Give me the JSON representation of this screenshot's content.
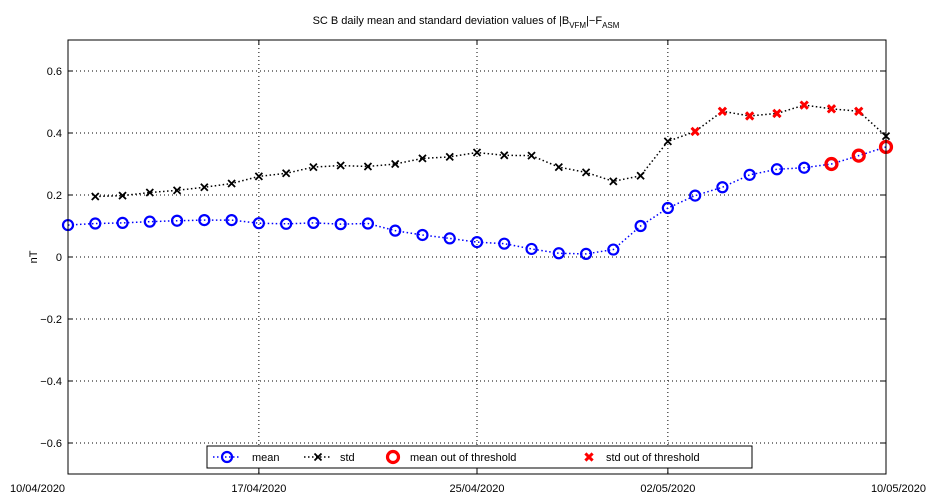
{
  "chart_data": {
    "type": "line",
    "title_parts": [
      "SC B daily mean and standard deviation values of |B",
      "VFM",
      "|−F",
      "ASM"
    ],
    "ylabel": "nT",
    "xlabel": "",
    "ylim": [
      -0.7,
      0.7
    ],
    "yticks": [
      -0.6,
      -0.4,
      -0.2,
      0,
      0.2,
      0.4,
      0.6
    ],
    "ytick_labels": [
      "−0.6",
      "−0.4",
      "−0.2",
      "0",
      "0.2",
      "0.4",
      "0.6"
    ],
    "xlim": [
      "2020-04-10",
      "2020-05-10"
    ],
    "xticks": [
      "2020-04-10",
      "2020-04-17",
      "2020-04-25",
      "2020-05-02",
      "2020-05-10"
    ],
    "xtick_labels": [
      "10/04/2020",
      "17/04/2020",
      "25/04/2020",
      "02/05/2020",
      "10/05/2020"
    ],
    "grid": true,
    "legend_position": "bottom-center",
    "series": [
      {
        "name": "mean",
        "color": "#0000ff",
        "marker": "circle",
        "x": [
          "2020-04-10",
          "2020-04-11",
          "2020-04-12",
          "2020-04-13",
          "2020-04-14",
          "2020-04-15",
          "2020-04-16",
          "2020-04-17",
          "2020-04-18",
          "2020-04-19",
          "2020-04-20",
          "2020-04-21",
          "2020-04-22",
          "2020-04-23",
          "2020-04-24",
          "2020-04-25",
          "2020-04-26",
          "2020-04-27",
          "2020-04-28",
          "2020-04-29",
          "2020-04-30",
          "2020-05-01",
          "2020-05-02",
          "2020-05-03",
          "2020-05-04",
          "2020-05-05",
          "2020-05-06",
          "2020-05-07",
          "2020-05-08",
          "2020-05-09",
          "2020-05-10"
        ],
        "values": [
          0.103,
          0.108,
          0.11,
          0.114,
          0.117,
          0.119,
          0.119,
          0.109,
          0.107,
          0.11,
          0.106,
          0.108,
          0.085,
          0.071,
          0.06,
          0.048,
          0.043,
          0.026,
          0.012,
          0.01,
          0.024,
          0.1,
          0.158,
          0.198,
          0.225,
          0.265,
          0.283,
          0.288,
          0.3,
          0.327,
          0.355
        ]
      },
      {
        "name": "std",
        "color": "#000000",
        "marker": "x",
        "x": [
          "2020-04-11",
          "2020-04-12",
          "2020-04-13",
          "2020-04-14",
          "2020-04-15",
          "2020-04-16",
          "2020-04-17",
          "2020-04-18",
          "2020-04-19",
          "2020-04-20",
          "2020-04-21",
          "2020-04-22",
          "2020-04-23",
          "2020-04-24",
          "2020-04-25",
          "2020-04-26",
          "2020-04-27",
          "2020-04-28",
          "2020-04-29",
          "2020-04-30",
          "2020-05-01",
          "2020-05-02",
          "2020-05-03",
          "2020-05-04",
          "2020-05-05",
          "2020-05-06",
          "2020-05-07",
          "2020-05-08",
          "2020-05-09",
          "2020-05-10"
        ],
        "values": [
          0.195,
          0.198,
          0.208,
          0.215,
          0.225,
          0.237,
          0.26,
          0.27,
          0.29,
          0.295,
          0.292,
          0.3,
          0.318,
          0.323,
          0.337,
          0.328,
          0.327,
          0.29,
          0.273,
          0.244,
          0.262,
          0.373,
          0.405,
          0.47,
          0.455,
          0.463,
          0.49,
          0.478,
          0.47,
          0.39
        ]
      },
      {
        "name": "mean out of threshold",
        "color": "#ff0000",
        "marker": "circle",
        "x": [
          "2020-05-08",
          "2020-05-09",
          "2020-05-10"
        ],
        "values": [
          0.3,
          0.327,
          0.355
        ]
      },
      {
        "name": "std out of threshold",
        "color": "#ff0000",
        "marker": "x",
        "x": [
          "2020-05-03",
          "2020-05-04",
          "2020-05-05",
          "2020-05-06",
          "2020-05-07",
          "2020-05-08",
          "2020-05-09"
        ],
        "values": [
          0.405,
          0.47,
          0.455,
          0.463,
          0.49,
          0.478,
          0.47
        ]
      }
    ]
  }
}
